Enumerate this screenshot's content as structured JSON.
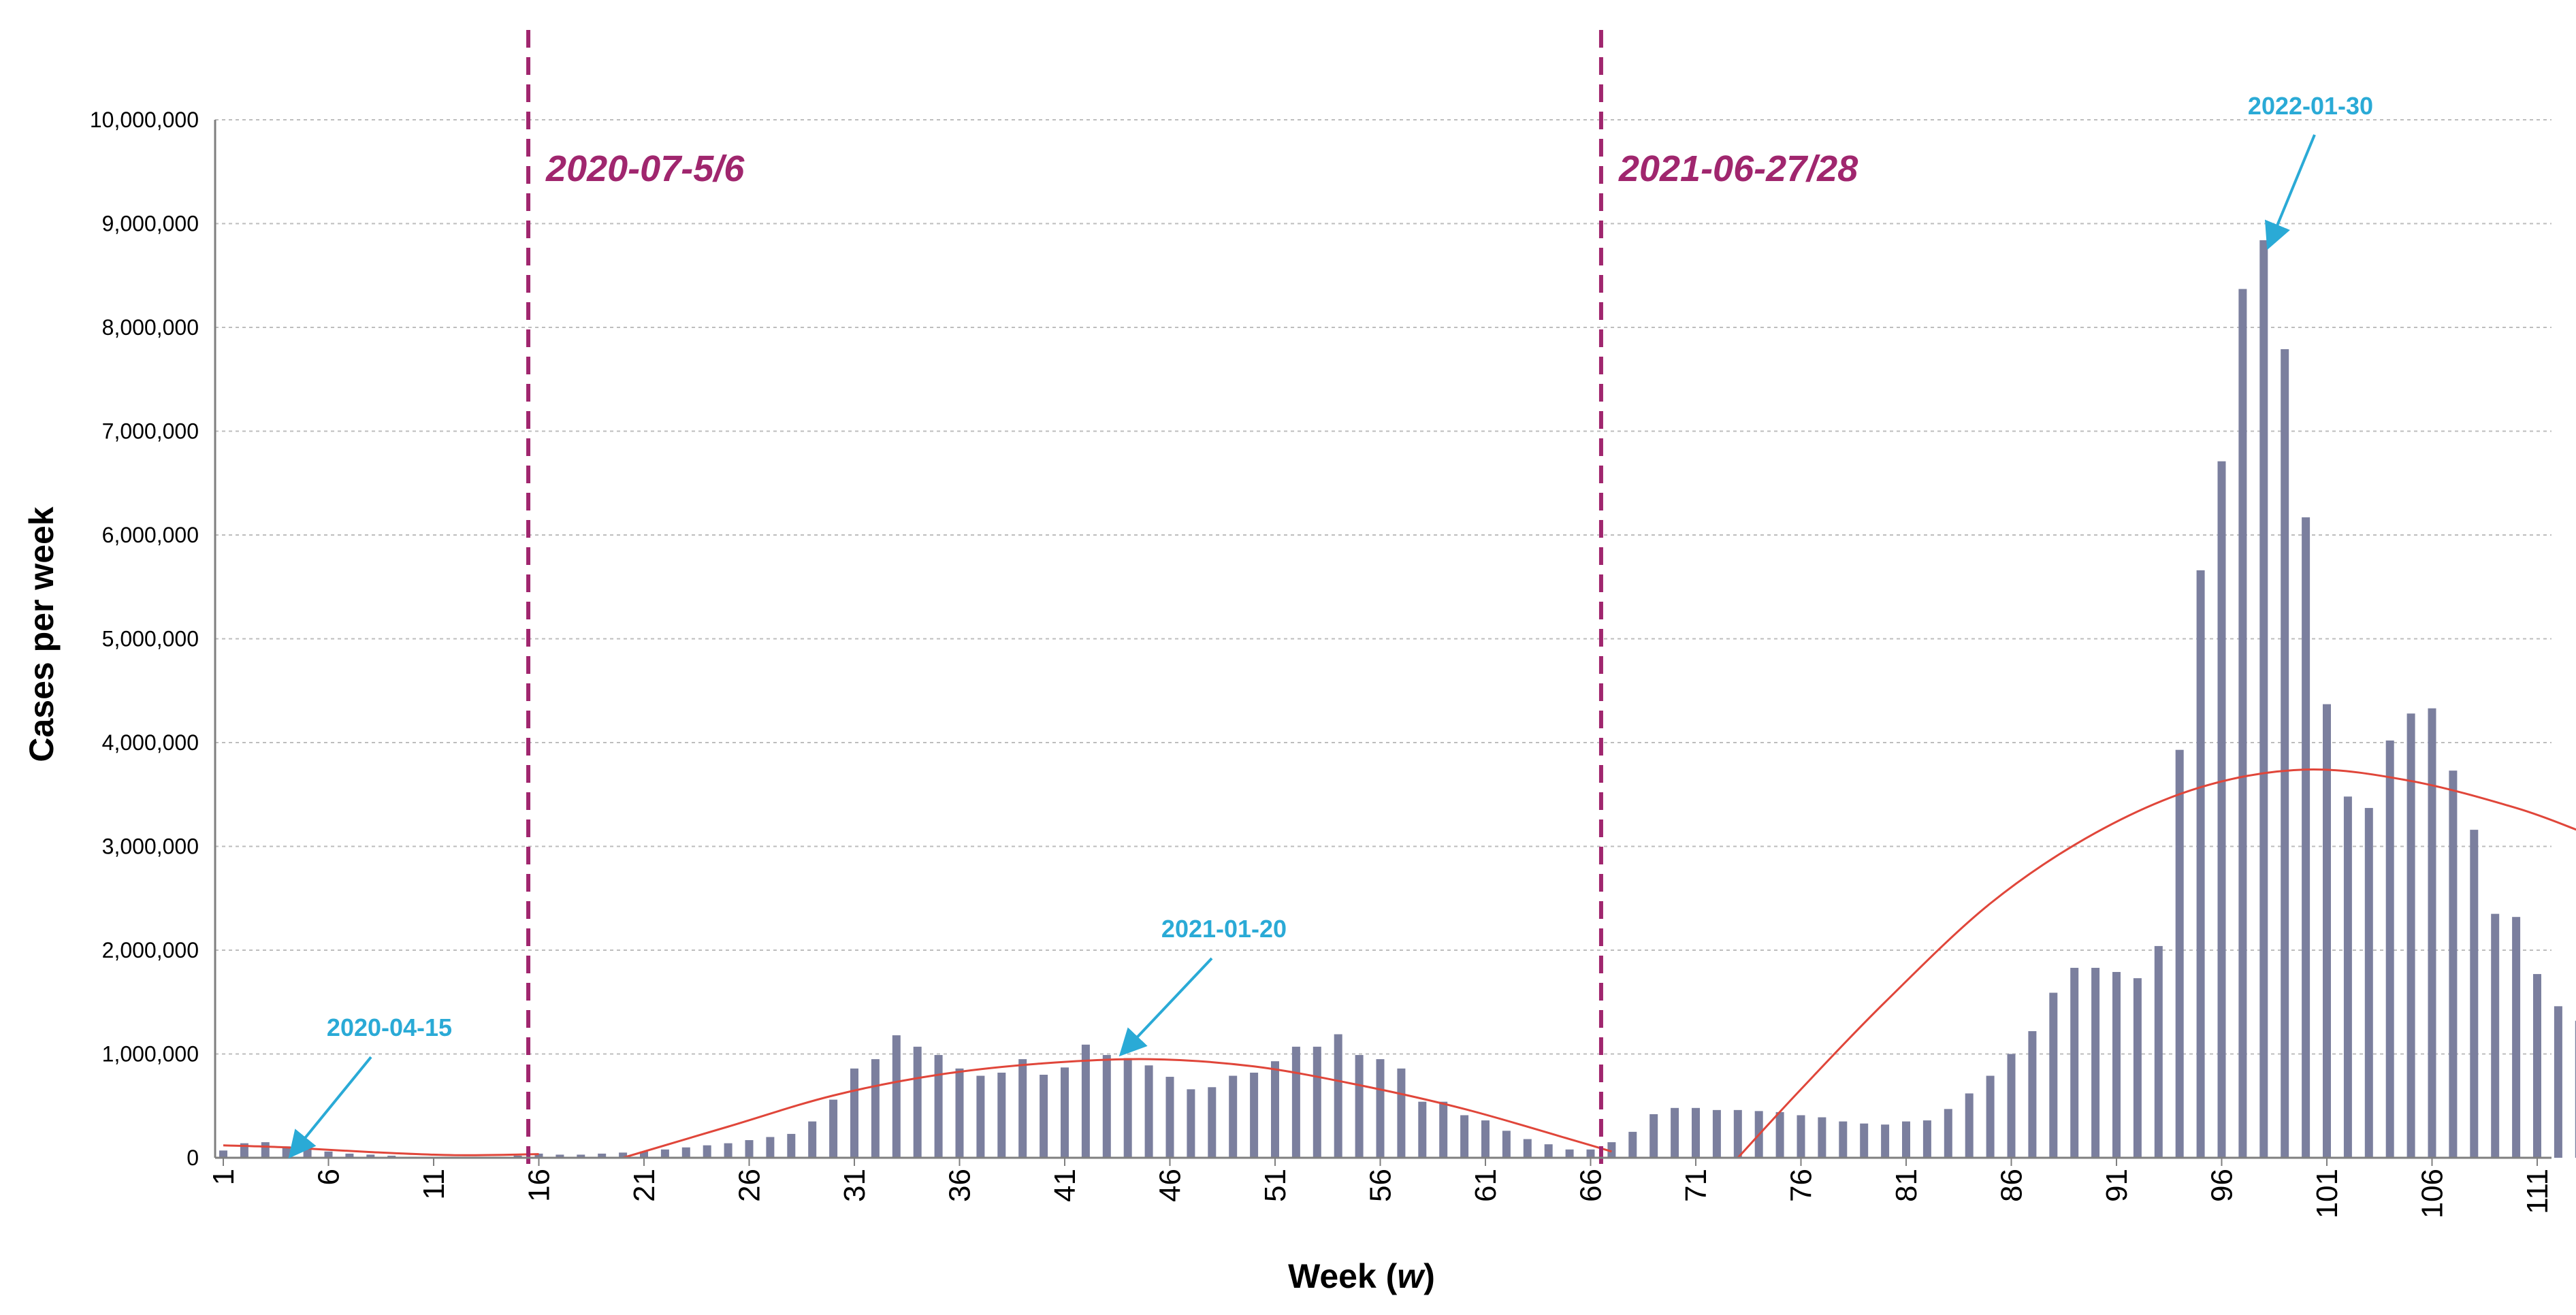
{
  "chart_data": {
    "type": "bar",
    "ylabel": "Cases per week",
    "xlabel_main": "Week (",
    "xlabel_var": "w",
    "xlabel_end": ")",
    "xlim": [
      1,
      112
    ],
    "ylim": [
      0,
      10000000
    ],
    "y_ticks": [
      0,
      1000000,
      2000000,
      3000000,
      4000000,
      5000000,
      6000000,
      7000000,
      8000000,
      9000000,
      10000000
    ],
    "y_tick_labels": [
      "0",
      "1,000,000",
      "2,000,000",
      "3,000,000",
      "4,000,000",
      "5,000,000",
      "6,000,000",
      "7,000,000",
      "8,000,000",
      "9,000,000",
      "10,000,000"
    ],
    "x_ticks": [
      1,
      6,
      11,
      16,
      21,
      26,
      31,
      36,
      41,
      46,
      51,
      56,
      61,
      66,
      71,
      76,
      81,
      86,
      91,
      96,
      101,
      106,
      111
    ],
    "x_tick_labels": [
      "1",
      "6",
      "11",
      "16",
      "21",
      "26",
      "31",
      "36",
      "41",
      "46",
      "51",
      "56",
      "61",
      "66",
      "71",
      "76",
      "81",
      "86",
      "91",
      "96",
      "101",
      "106",
      "111"
    ],
    "grid": true,
    "bar_color": "#7b7f9e",
    "trend_color": "#e0463a",
    "divider_color": "#a0266e",
    "annotation_color": "#2aaad6",
    "series": [
      {
        "values": [
          70000,
          140000,
          150000,
          110000,
          80000,
          60000,
          40000,
          30000,
          20000,
          10000,
          10000,
          10000,
          10000,
          10000,
          20000,
          40000,
          30000,
          30000,
          40000,
          50000,
          60000,
          80000,
          100000,
          120000,
          140000,
          170000,
          200000,
          230000,
          350000,
          560000,
          860000,
          950000,
          1180000,
          1070000,
          990000,
          860000,
          790000,
          820000,
          950000,
          800000,
          870000,
          1090000,
          990000,
          960000,
          890000,
          780000,
          660000,
          680000,
          790000,
          820000,
          930000,
          1070000,
          1070000,
          1190000,
          990000,
          950000,
          860000,
          540000,
          540000,
          410000,
          360000,
          260000,
          180000,
          130000,
          80000,
          80000,
          150000,
          250000,
          420000,
          480000,
          480000,
          460000,
          460000,
          450000,
          440000,
          410000,
          390000,
          350000,
          330000,
          320000,
          350000,
          360000,
          470000,
          620000,
          790000,
          1000000,
          1220000,
          1590000,
          1830000,
          1830000,
          1790000,
          1730000,
          2040000,
          3930000,
          5660000,
          6710000,
          8370000,
          8840000,
          7790000,
          6170000,
          4370000,
          3480000,
          3370000,
          4020000,
          4280000,
          4330000,
          3730000,
          3160000,
          2350000,
          2320000,
          1770000,
          1460000,
          1320000
        ]
      }
    ],
    "trend_segments": [
      {
        "x": [
          1,
          4,
          8,
          12,
          16
        ],
        "y": [
          120000,
          100000,
          55000,
          25000,
          35000
        ]
      },
      {
        "x": [
          20,
          25,
          30,
          35,
          40,
          45,
          50,
          55,
          60,
          65,
          67
        ],
        "y": [
          0,
          300000,
          600000,
          800000,
          910000,
          950000,
          880000,
          700000,
          470000,
          180000,
          60000
        ]
      },
      {
        "x": [
          73,
          76,
          80,
          85,
          90,
          95,
          100,
          105,
          110,
          113
        ],
        "y": [
          0,
          660000,
          1500000,
          2450000,
          3130000,
          3570000,
          3740000,
          3630000,
          3370000,
          3150000
        ]
      }
    ],
    "dividers": [
      {
        "x": 15.5,
        "label": "2020-07-5/6"
      },
      {
        "x": 66.5,
        "label": "2021-06-27/28"
      }
    ],
    "annotations": [
      {
        "label": "2020-04-15",
        "x": 4,
        "y": 100000
      },
      {
        "label": "2021-01-20",
        "x": 43.5,
        "y": 1080000
      },
      {
        "label": "2022-01-30",
        "x": 98,
        "y": 8860000
      }
    ]
  }
}
